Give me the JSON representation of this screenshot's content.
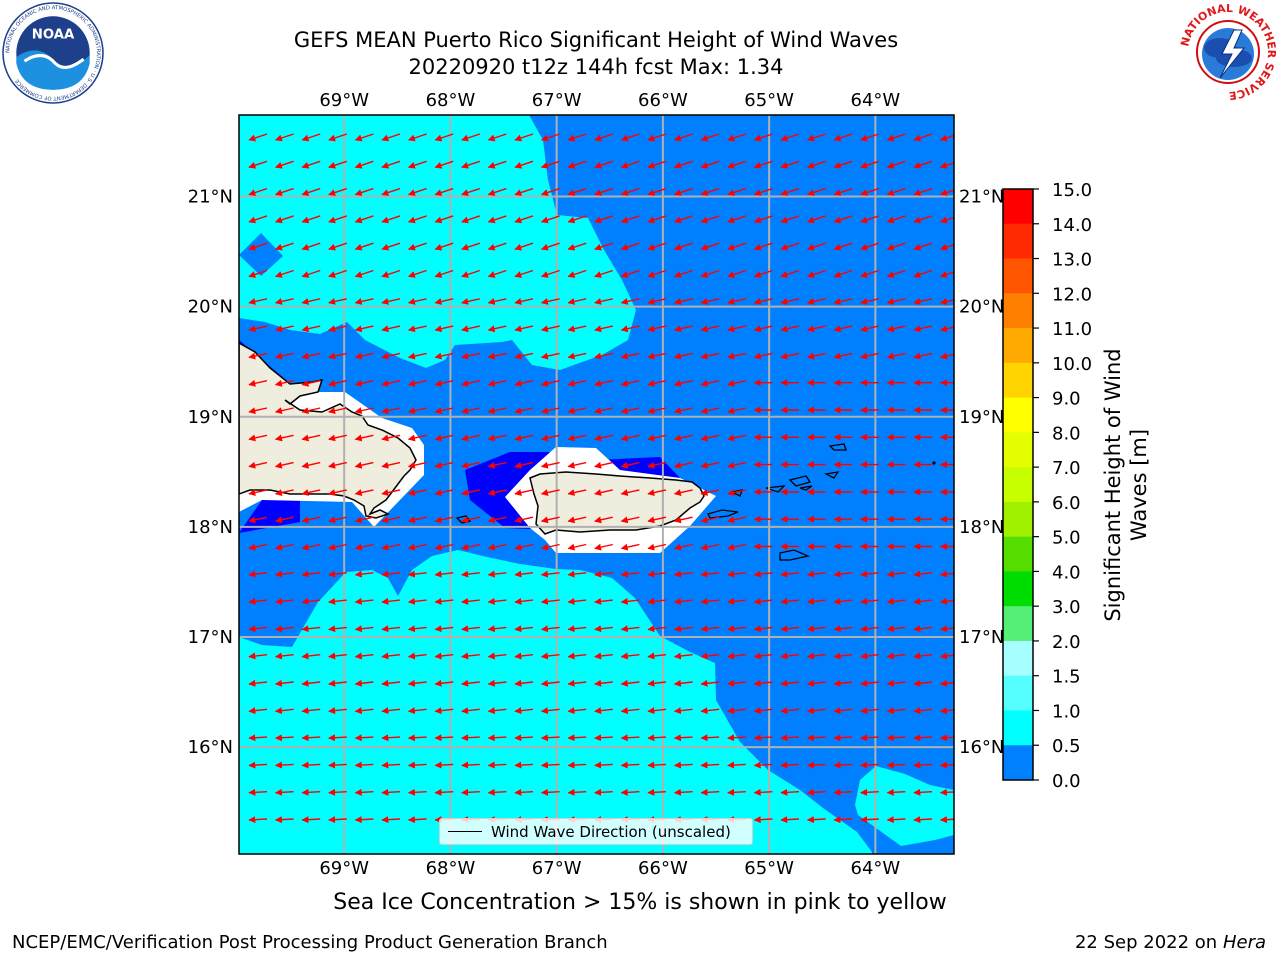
{
  "title": {
    "line1": "GEFS MEAN Puerto Rico Significant Height of Wind Waves",
    "line2": "20220920 t12z 144h fcst   Max: 1.34"
  },
  "map": {
    "lon_ticks": [
      "69°W",
      "68°W",
      "67°W",
      "66°W",
      "65°W",
      "64°W"
    ],
    "lat_ticks": [
      "21°N",
      "20°N",
      "19°N",
      "18°N",
      "17°N",
      "16°N"
    ],
    "grid": true,
    "wave_direction_arrow_color": "#ff0000",
    "land_color": "#efeddd",
    "legend": "Wind Wave Direction (unscaled)"
  },
  "colorbar": {
    "label": "Significant Height of Wind Waves [m]",
    "levels": [
      "15.0",
      "14.0",
      "13.0",
      "12.0",
      "11.0",
      "10.0",
      "9.0",
      "8.0",
      "7.0",
      "6.0",
      "5.0",
      "4.0",
      "3.0",
      "2.0",
      "1.5",
      "1.0",
      "0.5",
      "0.0"
    ],
    "colors": [
      "#ff0000",
      "#ff2a00",
      "#ff5500",
      "#ff8000",
      "#ffaa00",
      "#ffd400",
      "#ffff00",
      "#e6ff00",
      "#c8ff00",
      "#a0f000",
      "#55dd00",
      "#00dd00",
      "#55ee77",
      "#a8ffff",
      "#55ffff",
      "#00ffff",
      "#0080ff",
      "#0000ff"
    ]
  },
  "ice_note": "Sea Ice Concentration > 15% is shown in pink to yellow",
  "footer": {
    "left": "NCEP/EMC/Verification Post Processing Product Generation Branch",
    "date": "22 Sep 2022 on",
    "machine": "Hera"
  },
  "logos": {
    "noaa_text": "NOAA",
    "noaa_ring": "NATIONAL OCEANIC AND ATMOSPHERIC ADMINISTRATION · U.S. DEPARTMENT OF COMMERCE",
    "nws_ring": "NATIONAL WEATHER SERVICE"
  }
}
